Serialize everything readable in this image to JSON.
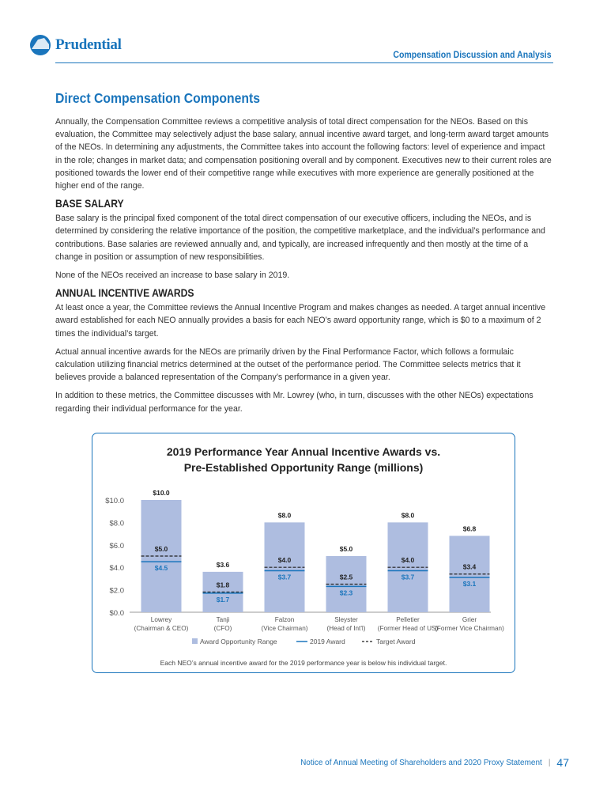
{
  "header": {
    "logo_text": "Prudential",
    "section": "Compensation Discussion and Analysis"
  },
  "title": "Direct Compensation Components",
  "intro": "Annually, the Compensation Committee reviews a competitive analysis of total direct compensation for the NEOs. Based on this evaluation, the Committee may selectively adjust the base salary, annual incentive award target, and long-term award target amounts of the NEOs. In determining any adjustments, the Committee takes into account the following factors: level of experience and impact in the role; changes in market data; and compensation positioning overall and by component. Executives new to their current roles are positioned towards the lower end of their competitive range while executives with more experience are generally positioned at the higher end of the range.",
  "base_salary": {
    "heading": "BASE SALARY",
    "p1": "Base salary is the principal fixed component of the total direct compensation of our executive officers, including the NEOs, and is determined by considering the relative importance of the position, the competitive marketplace, and the individual’s performance and contributions. Base salaries are reviewed annually and, and typically, are increased infrequently and then mostly at the time of a change in position or assumption of new responsibilities.",
    "p2": "None of the NEOs received an increase to base salary in 2019."
  },
  "annual": {
    "heading": "ANNUAL INCENTIVE AWARDS",
    "p1": "At least once a year, the Committee reviews the Annual Incentive Program and makes changes as needed. A target annual incentive award established for each NEO annually provides a basis for each NEO’s award opportunity range, which is $0 to a maximum of 2 times the individual’s target.",
    "p2": "Actual annual incentive awards for the NEOs are primarily driven by the Final Performance Factor, which follows a formulaic calculation utilizing financial metrics determined at the outset of the performance period. The Committee selects metrics that it believes provide a balanced representation of the Company’s performance in a given year.",
    "p3": "In addition to these metrics, the Committee discusses with Mr. Lowrey (who, in turn, discusses with the other NEOs) expectations regarding their individual performance for the year."
  },
  "chart_data": {
    "type": "bar",
    "title_line1": "2019 Performance Year Annual Incentive Awards vs.",
    "title_line2": "Pre-Established Opportunity Range (millions)",
    "categories": [
      [
        "Lowrey",
        "(Chairman & CEO)"
      ],
      [
        "Tanji",
        "(CFO)"
      ],
      [
        "Falzon",
        "(Vice Chairman)"
      ],
      [
        "Sleyster",
        "(Head of Int'l)"
      ],
      [
        "Pelletier",
        "(Former Head of US)"
      ],
      [
        "Grier",
        "(Former Vice Chairman)"
      ]
    ],
    "series": [
      {
        "name": "Award Opportunity Range",
        "values": [
          10.0,
          3.6,
          8.0,
          5.0,
          8.0,
          6.8
        ],
        "labels": [
          "$10.0",
          "$3.6",
          "$8.0",
          "$5.0",
          "$8.0",
          "$6.8"
        ],
        "color": "#aebde0"
      },
      {
        "name": "2019 Award",
        "values": [
          4.5,
          1.7,
          3.7,
          2.3,
          3.7,
          3.1
        ],
        "labels": [
          "$4.5",
          "$1.7",
          "$3.7",
          "$2.3",
          "$3.7",
          "$3.1"
        ],
        "color": "#1a75bc"
      },
      {
        "name": "Target Award",
        "values": [
          5.0,
          1.8,
          4.0,
          2.5,
          4.0,
          3.4
        ],
        "labels": [
          "$5.0",
          "$1.8",
          "$4.0",
          "$2.5",
          "$4.0",
          "$3.4"
        ],
        "color": "#222222"
      }
    ],
    "yticks": [
      "$0.0",
      "$2.0",
      "$4.0",
      "$6.0",
      "$8.0",
      "$10.0"
    ],
    "ylim": [
      0,
      10
    ],
    "legend": "bottom",
    "note": "Each NEO’s annual incentive award for the 2019 performance year is below his individual target."
  },
  "footer": {
    "text": "Notice of Annual Meeting of Shareholders and 2020 Proxy Statement",
    "page": "47"
  }
}
